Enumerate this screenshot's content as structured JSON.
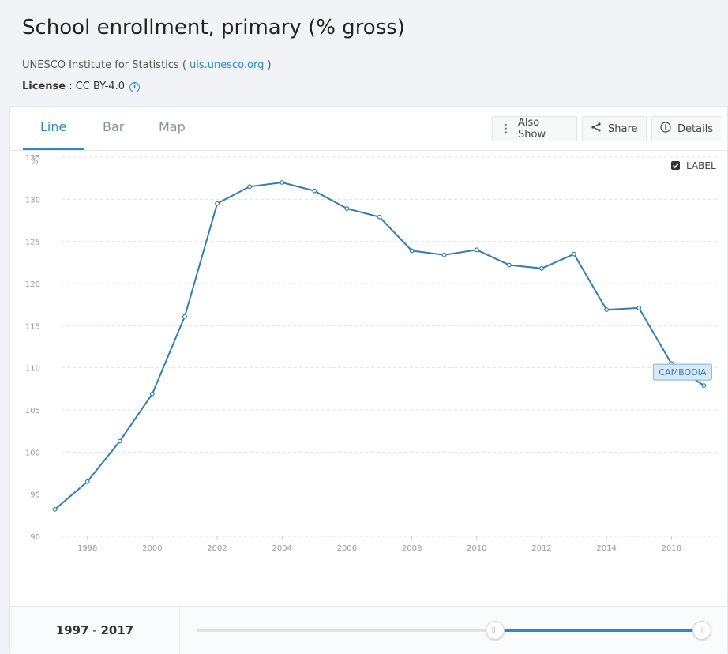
{
  "header": {
    "title": "School enrollment, primary (% gross)",
    "source_prefix": "UNESCO Institute for Statistics ( ",
    "source_link": "uis.unesco.org",
    "source_suffix": " )",
    "license_label": "License",
    "license_value": " : CC BY-4.0",
    "info_glyph": "i"
  },
  "tabs": [
    {
      "label": "Line",
      "active": true
    },
    {
      "label": "Bar",
      "active": false
    },
    {
      "label": "Map",
      "active": false
    }
  ],
  "toolbar": {
    "also_show": "Also Show",
    "share": "Share",
    "details": "Details",
    "also_show_icon": "vertical-dots-icon",
    "share_icon": "share-icon",
    "details_icon": "info-circle-icon"
  },
  "label_toggle": {
    "text": "LABEL",
    "checked": true
  },
  "range": {
    "start": "1997",
    "separator": " - ",
    "end": "2017",
    "slider_start_fraction": 0.59,
    "slider_end_fraction": 1.0
  },
  "colors": {
    "accent": "#2b8ac6",
    "line": "#2f7eb5",
    "grid": "#dfe3e8"
  },
  "chart_data": {
    "type": "line",
    "title": "School enrollment, primary (% gross)",
    "ylabel": "%",
    "xlabel": "",
    "ylim": [
      90,
      135
    ],
    "xlim": [
      1997,
      2017
    ],
    "yticks": [
      90,
      95,
      100,
      105,
      110,
      115,
      120,
      125,
      130,
      135
    ],
    "xticks": [
      1998,
      2000,
      2002,
      2004,
      2006,
      2008,
      2010,
      2012,
      2014,
      2016
    ],
    "grid": true,
    "series": [
      {
        "name": "CAMBODIA",
        "x": [
          1997,
          1998,
          1999,
          2000,
          2001,
          2002,
          2003,
          2004,
          2005,
          2006,
          2007,
          2008,
          2009,
          2010,
          2011,
          2012,
          2013,
          2014,
          2015,
          2016,
          2017
        ],
        "values": [
          93.2,
          96.5,
          101.3,
          106.9,
          116.1,
          129.5,
          131.5,
          132.0,
          131.0,
          128.9,
          127.9,
          123.9,
          123.4,
          124.0,
          122.2,
          121.8,
          123.5,
          116.9,
          117.1,
          110.5,
          107.9
        ]
      }
    ]
  }
}
